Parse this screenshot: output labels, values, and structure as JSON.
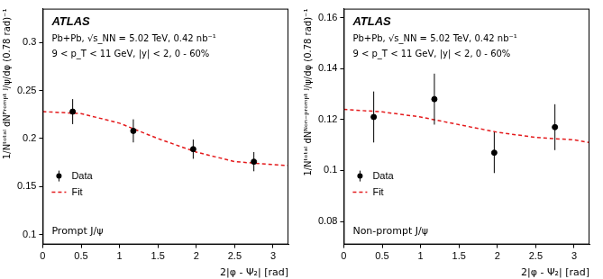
{
  "chart_data": [
    {
      "type": "scatter",
      "title": "ATLAS",
      "subtitle": [
        "Pb+Pb, √s_NN = 5.02 TeV, 0.42 nb⁻¹",
        "9 < p_T < 11 GeV, |y| < 2, 0 - 60%"
      ],
      "annotations": [
        "Prompt J/ψ"
      ],
      "x_label": "2|φ - Ψ₂| [rad]",
      "y_label": "1/Nᵗᵒᵗᵃˡ dNᴾʳᵒᵐᵖᵗ ᴶ/ψ/dφ (0.78 rad)⁻¹",
      "xlim": [
        0,
        3.2
      ],
      "xticks": [
        0,
        0.5,
        1,
        1.5,
        2,
        2.5,
        3
      ],
      "ylim": [
        0.09,
        0.335
      ],
      "yticks": [
        0.1,
        0.15,
        0.2,
        0.25,
        0.3
      ],
      "grid": false,
      "legend": "lower left",
      "series": [
        {
          "name": "Data",
          "color": "#000000",
          "marker": "circle",
          "x": [
            0.39,
            1.18,
            1.96,
            2.75
          ],
          "values": [
            0.228,
            0.208,
            0.189,
            0.176
          ],
          "errors": [
            0.013,
            0.012,
            0.01,
            0.01
          ]
        },
        {
          "name": "Fit",
          "type": "line",
          "color": "#e41a1c",
          "line_style": "dashed",
          "x": [
            0,
            0.5,
            1,
            1.5,
            2,
            2.5,
            3,
            3.2
          ],
          "values": [
            0.228,
            0.226,
            0.216,
            0.2,
            0.186,
            0.176,
            0.173,
            0.172
          ]
        }
      ]
    },
    {
      "type": "scatter",
      "title": "ATLAS",
      "subtitle": [
        "Pb+Pb, √s_NN = 5.02 TeV, 0.42 nb⁻¹",
        "9 < p_T < 11 GeV, |y| < 2, 0 - 60%"
      ],
      "annotations": [
        "Non-prompt J/ψ"
      ],
      "x_label": "2|φ - Ψ₂| [rad]",
      "y_label": "1/Nᵗᵒᵗᵃˡ dNᴺᵒⁿ⁻ᵖʳᵒᵐᵖᵗ ᴶ/ψ/dφ (0.78 rad)⁻¹",
      "xlim": [
        0,
        3.2
      ],
      "xticks": [
        0,
        0.5,
        1,
        1.5,
        2,
        2.5,
        3
      ],
      "ylim": [
        0.071,
        0.1635
      ],
      "yticks": [
        0.08,
        0.1,
        0.12,
        0.14,
        0.16
      ],
      "grid": false,
      "legend": "lower left",
      "series": [
        {
          "name": "Data",
          "color": "#000000",
          "marker": "circle",
          "x": [
            0.39,
            1.18,
            1.96,
            2.75
          ],
          "values": [
            0.121,
            0.128,
            0.107,
            0.117
          ],
          "errors": [
            0.01,
            0.01,
            0.008,
            0.009
          ]
        },
        {
          "name": "Fit",
          "type": "line",
          "color": "#e41a1c",
          "line_style": "dashed",
          "x": [
            0,
            0.5,
            1,
            1.5,
            2,
            2.5,
            3,
            3.2
          ],
          "values": [
            0.124,
            0.123,
            0.121,
            0.118,
            0.115,
            0.113,
            0.112,
            0.111
          ]
        }
      ]
    }
  ]
}
